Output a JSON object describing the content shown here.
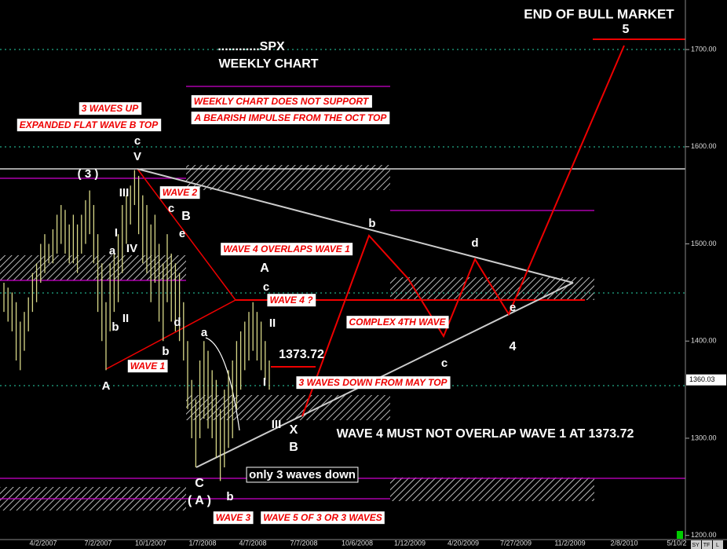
{
  "chart_data": {
    "type": "ohlc",
    "color": "#d8d888",
    "ylim": [
      1186,
      1751
    ],
    "yticks": [
      {
        "value": 1200,
        "label": "1200.00"
      },
      {
        "value": 1300,
        "label": "1300.00"
      },
      {
        "value": 1400,
        "label": "1400.00"
      },
      {
        "value": 1500,
        "label": "1500.00"
      },
      {
        "value": 1600,
        "label": "1600.00"
      },
      {
        "value": 1700,
        "label": "1700.00"
      }
    ],
    "xtick_labels": [
      "007",
      "4/2/2007",
      "7/2/2007",
      "10/1/2007",
      "1/7/2008",
      "4/7/2008",
      "7/7/2008",
      "10/6/2008",
      "1/12/2009",
      "4/20/2009",
      "7/27/2009",
      "11/2/2009",
      "2/8/2010",
      "5/10/2"
    ],
    "last_price": 1360.03,
    "high": [
      1460,
      1455,
      1450,
      1440,
      1420,
      1430,
      1445,
      1470,
      1480,
      1500,
      1510,
      1500,
      1515,
      1530,
      1540,
      1535,
      1520,
      1530,
      1520,
      1530,
      1545,
      1555,
      1540,
      1510,
      1480,
      1440,
      1480,
      1490,
      1510,
      1540,
      1550,
      1560,
      1576,
      1570,
      1550,
      1540,
      1520,
      1530,
      1500,
      1480,
      1510,
      1490,
      1480,
      1470,
      1440,
      1400,
      1360,
      1340,
      1380,
      1400,
      1390,
      1370,
      1360,
      1330,
      1350,
      1370,
      1380,
      1400,
      1410,
      1420,
      1430,
      1440,
      1430,
      1420,
      1400,
      1380
    ],
    "low": [
      1430,
      1420,
      1410,
      1380,
      1370,
      1390,
      1410,
      1430,
      1440,
      1460,
      1470,
      1480,
      1480,
      1490,
      1500,
      1490,
      1480,
      1480,
      1470,
      1490,
      1500,
      1510,
      1480,
      1430,
      1400,
      1370,
      1410,
      1430,
      1440,
      1470,
      1500,
      1520,
      1540,
      1510,
      1480,
      1470,
      1440,
      1460,
      1420,
      1400,
      1440,
      1420,
      1410,
      1400,
      1380,
      1330,
      1300,
      1270,
      1300,
      1320,
      1310,
      1300,
      1280,
      1256,
      1270,
      1290,
      1300,
      1330,
      1350,
      1370,
      1380,
      1390,
      1380,
      1370,
      1360,
      1350
    ],
    "annotations": [
      "END OF BULL MARKET",
      "5",
      "............SPX",
      "WEEKLY CHART",
      "3 WAVES UP",
      "EXPANDED FLAT WAVE B TOP",
      "WEEKLY CHART DOES NOT SUPPORT",
      "A BEARISH IMPULSE FROM THE OCT TOP",
      "c",
      "V",
      "( 3 )",
      "III",
      "WAVE 2",
      "c",
      "B",
      "e",
      "I",
      "a",
      "IV",
      "II",
      "b",
      "d",
      "b",
      "WAVE 1",
      "A",
      "a",
      "WAVE 4 OVERLAPS WAVE 1",
      "A",
      "c",
      "WAVE 4 ?",
      "II",
      "1373.72",
      "I",
      "3 WAVES DOWN FROM MAY TOP",
      "III",
      "X",
      "B",
      "WAVE 4 MUST NOT OVERLAP WAVE 1 AT 1373.72",
      "b",
      "d",
      "COMPLEX 4TH WAVE",
      "e",
      "4",
      "c",
      "C",
      "( A )",
      "only 3 waves down",
      "b",
      "WAVE 3",
      "WAVE 5 OF 3 OR 3 WAVES"
    ],
    "toolbar": [
      "SY",
      "TF",
      "L"
    ]
  }
}
